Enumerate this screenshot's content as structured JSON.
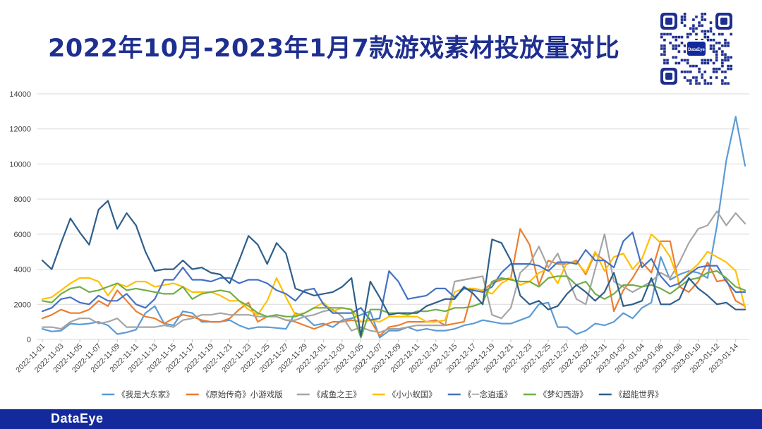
{
  "title": "2022年10月-2023年1月7款游戏素材投放量对比",
  "footer": {
    "brand": "DataEye"
  },
  "qr": {
    "label": "DataEye"
  },
  "chart_data": {
    "type": "line",
    "title": "2022年10月-2023年1月7款游戏素材投放量对比",
    "xlabel": "",
    "ylabel": "",
    "ylim": [
      0,
      14000
    ],
    "yticks": [
      "0",
      "2000",
      "4000",
      "6000",
      "8000",
      "10000",
      "12000",
      "14000"
    ],
    "grid": true,
    "legend": "bottom",
    "x_tick_labels": [
      "2022-11-01",
      "2022-11-03",
      "2022-11-05",
      "2022-11-07",
      "2022-11-09",
      "2022-11-11",
      "2022-11-13",
      "2022-11-15",
      "2022-11-17",
      "2022-11-19",
      "2022-11-21",
      "2022-11-23",
      "2022-11-25",
      "2022-11-27",
      "2022-11-29",
      "2022-12-01",
      "2022-12-03",
      "2022-12-05",
      "2022-12-07",
      "2022-12-09",
      "2022-12-11",
      "2022-12-13",
      "2022-12-15",
      "2022-12-17",
      "2022-12-19",
      "2022-12-21",
      "2022-12-23",
      "2022-12-25",
      "2022-12-27",
      "2022-12-29",
      "2022-12-31",
      "2023-01-02",
      "2023-01-04",
      "2023-01-06",
      "2023-01-08",
      "2023-01-10",
      "2023-01-12",
      "2023-01-14"
    ],
    "x": [
      "2022-11-01",
      "2022-11-02",
      "2022-11-03",
      "2022-11-04",
      "2022-11-05",
      "2022-11-06",
      "2022-11-07",
      "2022-11-08",
      "2022-11-09",
      "2022-11-10",
      "2022-11-11",
      "2022-11-12",
      "2022-11-13",
      "2022-11-14",
      "2022-11-15",
      "2022-11-16",
      "2022-11-17",
      "2022-11-18",
      "2022-11-19",
      "2022-11-20",
      "2022-11-21",
      "2022-11-22",
      "2022-11-23",
      "2022-11-24",
      "2022-11-25",
      "2022-11-26",
      "2022-11-27",
      "2022-11-28",
      "2022-11-29",
      "2022-11-30",
      "2022-12-01",
      "2022-12-02",
      "2022-12-03",
      "2022-12-04",
      "2022-12-05",
      "2022-12-06",
      "2022-12-07",
      "2022-12-08",
      "2022-12-09",
      "2022-12-10",
      "2022-12-11",
      "2022-12-12",
      "2022-12-13",
      "2022-12-14",
      "2022-12-15",
      "2022-12-16",
      "2022-12-17",
      "2022-12-18",
      "2022-12-19",
      "2022-12-20",
      "2022-12-21",
      "2022-12-22",
      "2022-12-23",
      "2022-12-24",
      "2022-12-25",
      "2022-12-26",
      "2022-12-27",
      "2022-12-28",
      "2022-12-29",
      "2022-12-30",
      "2022-12-31",
      "2023-01-01",
      "2023-01-02",
      "2023-01-03",
      "2023-01-04",
      "2023-01-05",
      "2023-01-06",
      "2023-01-07",
      "2023-01-08",
      "2023-01-09",
      "2023-01-10",
      "2023-01-11",
      "2023-01-12",
      "2023-01-13",
      "2023-01-14",
      "2023-01-15"
    ],
    "series": [
      {
        "name": "《我是大东家》",
        "color": "#5b9bd5",
        "values": [
          600,
          450,
          500,
          900,
          850,
          900,
          1000,
          800,
          300,
          400,
          550,
          1500,
          1900,
          900,
          800,
          1600,
          1500,
          1000,
          1000,
          1000,
          1100,
          800,
          600,
          700,
          700,
          650,
          600,
          1500,
          1300,
          800,
          900,
          700,
          1100,
          1200,
          1400,
          1600,
          100,
          500,
          500,
          700,
          500,
          600,
          500,
          500,
          600,
          800,
          900,
          1100,
          1000,
          900,
          900,
          1100,
          1300,
          2000,
          2100,
          700,
          700,
          300,
          500,
          900,
          800,
          1000,
          1500,
          1200,
          1800,
          2100,
          4700,
          3400,
          3700,
          3900,
          3800,
          3500,
          6500,
          10200,
          12700,
          9900
        ]
      },
      {
        "name": "《原始传奇》小游戏版",
        "color": "#ed7d31",
        "values": [
          1200,
          1400,
          1700,
          1500,
          1500,
          1700,
          2200,
          1900,
          2800,
          2200,
          1600,
          1300,
          1200,
          900,
          1200,
          1400,
          1300,
          1100,
          1000,
          1000,
          1200,
          1700,
          2100,
          1000,
          1300,
          1300,
          1100,
          1000,
          800,
          600,
          800,
          1000,
          1000,
          1100,
          1000,
          1100,
          200,
          700,
          800,
          1000,
          1000,
          1000,
          1100,
          800,
          900,
          1000,
          2900,
          2800,
          3200,
          3400,
          3500,
          6300,
          5400,
          3100,
          4500,
          4300,
          4300,
          4500,
          3700,
          4900,
          4500,
          1600,
          2800,
          3500,
          4400,
          3800,
          5600,
          5600,
          3000,
          2700,
          3300,
          4400,
          3300,
          3400,
          2200,
          1900
        ]
      },
      {
        "name": "《咸鱼之王》",
        "color": "#a5a5a5",
        "values": [
          700,
          700,
          600,
          1000,
          1200,
          1200,
          900,
          1000,
          1200,
          700,
          700,
          700,
          700,
          800,
          700,
          1100,
          1200,
          1400,
          1400,
          1500,
          1400,
          1400,
          1400,
          1300,
          1300,
          1300,
          1100,
          1100,
          1300,
          1400,
          1600,
          1700,
          1300,
          500,
          700,
          500,
          400,
          600,
          600,
          700,
          800,
          800,
          800,
          800,
          3300,
          3400,
          3500,
          3600,
          1400,
          1200,
          1800,
          3800,
          4300,
          5300,
          4100,
          4900,
          3600,
          2300,
          2000,
          4000,
          6000,
          3300,
          3000,
          2700,
          3000,
          3300,
          3800,
          3500,
          4400,
          5500,
          6300,
          6500,
          7300,
          6500,
          7200,
          6600
        ]
      },
      {
        "name": "《小小蚁国》",
        "color": "#ffc000",
        "values": [
          2300,
          2400,
          2800,
          3200,
          3500,
          3500,
          3300,
          2500,
          3200,
          3000,
          3300,
          3300,
          3000,
          3100,
          3200,
          3000,
          2700,
          2700,
          2700,
          2500,
          2200,
          2200,
          1700,
          1400,
          2200,
          3500,
          2400,
          1400,
          1500,
          1800,
          2100,
          1600,
          1800,
          1700,
          1000,
          1100,
          1000,
          1300,
          1300,
          1300,
          1300,
          1000,
          1000,
          1100,
          2700,
          2900,
          2900,
          2800,
          2600,
          3200,
          3500,
          3100,
          3300,
          3800,
          4000,
          3200,
          4400,
          4400,
          3800,
          5000,
          3900,
          4700,
          4900,
          4000,
          4600,
          6000,
          5500,
          4700,
          3200,
          3800,
          4300,
          5000,
          4700,
          4400,
          3900,
          1800
        ]
      },
      {
        "name": "《一念逍遥》",
        "color": "#4472c4",
        "values": [
          1600,
          1800,
          2300,
          2400,
          2100,
          2000,
          2500,
          2200,
          2200,
          2600,
          2000,
          1800,
          2300,
          3400,
          3400,
          4100,
          3400,
          3400,
          3300,
          3500,
          3500,
          3200,
          3400,
          3400,
          3200,
          2800,
          2600,
          2200,
          2800,
          2900,
          2000,
          1500,
          1500,
          1500,
          1800,
          1100,
          1200,
          3900,
          3300,
          2300,
          2400,
          2500,
          2900,
          2900,
          2400,
          2900,
          2800,
          2700,
          3000,
          3800,
          4300,
          4300,
          4300,
          4200,
          3900,
          4400,
          4400,
          4300,
          5100,
          4500,
          4500,
          4100,
          5600,
          6100,
          4100,
          4600,
          3600,
          3000,
          3200,
          3700,
          4100,
          4200,
          4200,
          3300,
          2700,
          2700
        ]
      },
      {
        "name": "《梦幻西游》",
        "color": "#70ad47",
        "values": [
          2200,
          2100,
          2600,
          2900,
          3000,
          2700,
          2800,
          3000,
          3200,
          2800,
          2900,
          2800,
          2700,
          2600,
          2600,
          3000,
          2300,
          2600,
          2700,
          2800,
          2700,
          2200,
          1900,
          1500,
          1300,
          1400,
          1300,
          1300,
          1500,
          1800,
          1800,
          1800,
          1800,
          1700,
          100,
          1700,
          1700,
          1500,
          1500,
          1400,
          1600,
          1600,
          1700,
          1600,
          1800,
          1800,
          1900,
          2100,
          3300,
          3500,
          3400,
          3300,
          3300,
          3000,
          3500,
          3600,
          3600,
          3100,
          3300,
          2600,
          2300,
          2600,
          3100,
          3100,
          3000,
          3100,
          2900,
          2600,
          3000,
          3400,
          3500,
          3800,
          3900,
          3500,
          3000,
          2800
        ]
      },
      {
        "name": "《超能世界》",
        "color": "#2e5f8a",
        "values": [
          4500,
          4000,
          5500,
          6900,
          6100,
          5400,
          7400,
          7900,
          6300,
          7200,
          6500,
          5000,
          3900,
          4000,
          4000,
          4500,
          4000,
          4100,
          3800,
          3700,
          3200,
          4500,
          5900,
          5400,
          4300,
          5500,
          4900,
          2900,
          2700,
          2500,
          2600,
          2700,
          3000,
          3500,
          200,
          3300,
          2400,
          1400,
          1500,
          1500,
          1500,
          1900,
          2100,
          2300,
          2300,
          3000,
          2600,
          2000,
          5700,
          5500,
          4500,
          2500,
          2000,
          2200,
          1700,
          1900,
          2600,
          3100,
          2700,
          2200,
          2700,
          3800,
          1900,
          2000,
          2200,
          3500,
          2000,
          2000,
          2300,
          3500,
          2900,
          2500,
          2000,
          2100,
          1700,
          1700
        ]
      }
    ]
  }
}
